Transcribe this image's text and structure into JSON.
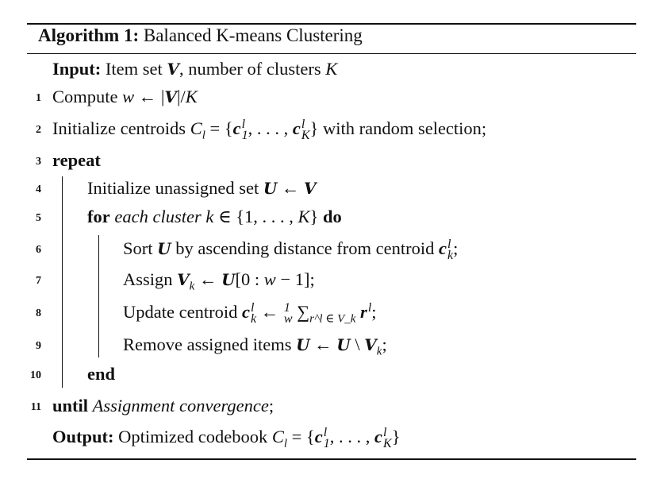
{
  "algorithm": {
    "label": "Algorithm 1:",
    "title": "Balanced K-means Clustering",
    "lines": [
      {
        "num": "",
        "indent": 0,
        "segs": [
          {
            "t": "Input:",
            "s": "b"
          },
          {
            "t": " Item set "
          },
          {
            "t": "V",
            "s": "cal"
          },
          {
            "t": ", number of clusters "
          },
          {
            "t": "K",
            "s": "i"
          }
        ]
      },
      {
        "num": "1",
        "indent": 0,
        "segs": [
          {
            "t": "Compute "
          },
          {
            "t": "w",
            "s": "i"
          },
          {
            "t": " ← |"
          },
          {
            "t": "V",
            "s": "cal"
          },
          {
            "t": "|/"
          },
          {
            "t": "K",
            "s": "i"
          }
        ]
      },
      {
        "num": "2",
        "indent": 0,
        "segs": [
          {
            "t": "Initialize centroids "
          },
          {
            "t": "C",
            "s": "i"
          },
          {
            "t": "l",
            "s": "sub"
          },
          {
            "t": " = {"
          },
          {
            "t": "c",
            "s": "mb"
          },
          {
            "ss": [
              "l",
              "1"
            ]
          },
          {
            "t": ", . . . , "
          },
          {
            "t": "c",
            "s": "mb"
          },
          {
            "ss": [
              "l",
              "K"
            ]
          },
          {
            "t": "} with random selection;"
          }
        ]
      },
      {
        "num": "3",
        "indent": 0,
        "segs": [
          {
            "t": "repeat",
            "s": "b"
          }
        ]
      },
      {
        "num": "4",
        "indent": 1,
        "segs": [
          {
            "t": "Initialize unassigned set "
          },
          {
            "t": "U",
            "s": "cal"
          },
          {
            "t": " ← "
          },
          {
            "t": "V",
            "s": "cal"
          }
        ]
      },
      {
        "num": "5",
        "indent": 1,
        "segs": [
          {
            "t": "for",
            "s": "b"
          },
          {
            "t": " "
          },
          {
            "t": "each cluster k",
            "s": "i"
          },
          {
            "t": " ∈ {1, . . . , "
          },
          {
            "t": "K",
            "s": "i"
          },
          {
            "t": "} "
          },
          {
            "t": "do",
            "s": "b"
          }
        ]
      },
      {
        "num": "6",
        "indent": 2,
        "segs": [
          {
            "t": "Sort "
          },
          {
            "t": "U",
            "s": "cal"
          },
          {
            "t": " by ascending distance from centroid "
          },
          {
            "t": "c",
            "s": "mb"
          },
          {
            "ss": [
              "l",
              "k"
            ]
          },
          {
            "t": ";"
          }
        ]
      },
      {
        "num": "7",
        "indent": 2,
        "segs": [
          {
            "t": "Assign "
          },
          {
            "t": "V",
            "s": "cal"
          },
          {
            "t": "k",
            "s": "sub"
          },
          {
            "t": " ← "
          },
          {
            "t": "U",
            "s": "cal"
          },
          {
            "t": "[0 : "
          },
          {
            "t": "w",
            "s": "i"
          },
          {
            "t": " − 1];"
          }
        ]
      },
      {
        "num": "8",
        "indent": 2,
        "segs": [
          {
            "t": "Update centroid "
          },
          {
            "t": "c",
            "s": "mb"
          },
          {
            "ss": [
              "l",
              "k"
            ]
          },
          {
            "t": " ← "
          },
          {
            "ss": [
              "1",
              "w"
            ]
          },
          {
            "t": " ∑"
          },
          {
            "t": "r^l ∈ V_k",
            "s": "sub"
          },
          {
            "t": " "
          },
          {
            "t": "r",
            "s": "mb"
          },
          {
            "ss": [
              "l",
              ""
            ]
          },
          {
            "t": ";"
          }
        ]
      },
      {
        "num": "9",
        "indent": 2,
        "segs": [
          {
            "t": "Remove assigned items "
          },
          {
            "t": "U",
            "s": "cal"
          },
          {
            "t": " ← "
          },
          {
            "t": "U",
            "s": "cal"
          },
          {
            "t": " \\ "
          },
          {
            "t": "V",
            "s": "cal"
          },
          {
            "t": "k",
            "s": "sub"
          },
          {
            "t": ";"
          }
        ]
      },
      {
        "num": "10",
        "indent": 1,
        "segs": [
          {
            "t": "end",
            "s": "b"
          }
        ]
      },
      {
        "num": "11",
        "indent": 0,
        "segs": [
          {
            "t": "until",
            "s": "b"
          },
          {
            "t": " "
          },
          {
            "t": "Assignment convergence",
            "s": "i"
          },
          {
            "t": ";"
          }
        ]
      },
      {
        "num": "",
        "indent": 0,
        "segs": [
          {
            "t": "Output:",
            "s": "b"
          },
          {
            "t": " Optimized codebook "
          },
          {
            "t": "C",
            "s": "i"
          },
          {
            "t": "l",
            "s": "sub"
          },
          {
            "t": " = {"
          },
          {
            "t": "c",
            "s": "mb"
          },
          {
            "ss": [
              "l",
              "1"
            ]
          },
          {
            "t": ", . . . , "
          },
          {
            "t": "c",
            "s": "mb"
          },
          {
            "ss": [
              "l",
              "K"
            ]
          },
          {
            "t": "}"
          }
        ]
      }
    ]
  }
}
